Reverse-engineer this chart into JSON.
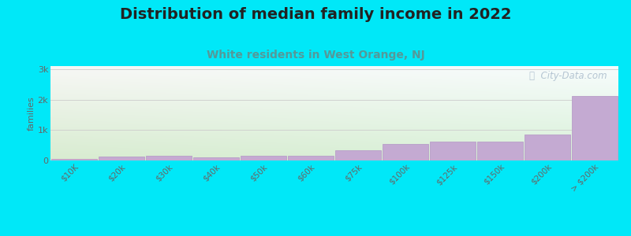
{
  "title": "Distribution of median family income in 2022",
  "subtitle": "White residents in West Orange, NJ",
  "categories": [
    "$10K",
    "$20k",
    "$30k",
    "$40k",
    "$50k",
    "$60k",
    "$75k",
    "$100k",
    "$125k",
    "$150k",
    "$200k",
    "> $200k"
  ],
  "values": [
    60,
    120,
    155,
    110,
    145,
    150,
    340,
    550,
    615,
    620,
    840,
    2130
  ],
  "bar_color": "#c4aad2",
  "bar_edge_color": "#b89ec8",
  "background_outer": "#00e8f8",
  "plot_bg_top_left": "#e8f2e0",
  "plot_bg_top_right": "#f8f8f5",
  "plot_bg_bottom": "#d8ecd0",
  "title_fontsize": 14,
  "subtitle_fontsize": 10,
  "subtitle_color": "#559999",
  "ylabel": "families",
  "ylabel_fontsize": 8,
  "ytick_labels": [
    "0",
    "1k",
    "2k",
    "3k"
  ],
  "ytick_values": [
    0,
    1000,
    2000,
    3000
  ],
  "ylim": [
    0,
    3100
  ],
  "watermark": "ⓘ  City-Data.com",
  "watermark_color": "#aabccc",
  "grid_color": "#cccccc",
  "grid_linewidth": 0.6
}
